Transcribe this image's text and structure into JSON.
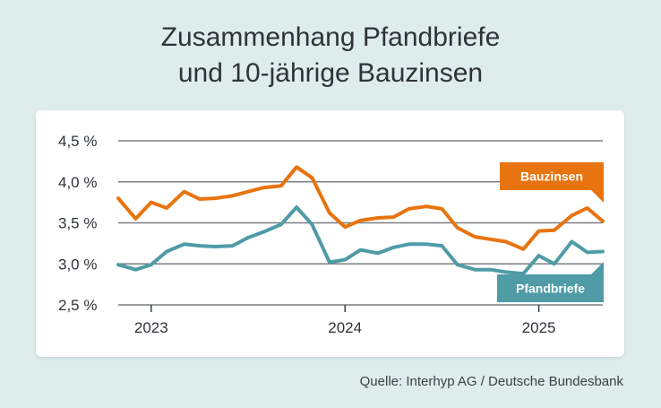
{
  "title_line1": "Zusammenhang Pfandbriefe",
  "title_line2": "und 10-jährige Bauzinsen",
  "source": "Quelle: Interhyp AG / Deutsche Bundesbank",
  "colors": {
    "bauzinsen": "#e8740f",
    "pfandbriefe": "#4f9ba6",
    "background": "#deeceb"
  },
  "chart_data": {
    "type": "line",
    "title": "Zusammenhang Pfandbriefe und 10-jährige Bauzinsen",
    "xlabel": "",
    "ylabel": "",
    "ylim": [
      2.5,
      4.5
    ],
    "yticks": [
      2.5,
      3.0,
      3.5,
      4.0,
      4.5
    ],
    "ytick_labels": [
      "2,5 %",
      "3,0 %",
      "3,5 %",
      "4,0 %",
      "4,5 %"
    ],
    "x_range": [
      2022.83,
      2025.33
    ],
    "xticks": [
      2023,
      2024,
      2025
    ],
    "xtick_labels": [
      "2023",
      "2024",
      "2025"
    ],
    "grid": "horizontal",
    "x": [
      2022.83,
      2022.92,
      2023.0,
      2023.08,
      2023.17,
      2023.25,
      2023.33,
      2023.42,
      2023.5,
      2023.58,
      2023.67,
      2023.75,
      2023.83,
      2023.92,
      2024.0,
      2024.08,
      2024.17,
      2024.25,
      2024.33,
      2024.42,
      2024.5,
      2024.58,
      2024.67,
      2024.75,
      2024.83,
      2024.92,
      2025.0,
      2025.08,
      2025.17,
      2025.25,
      2025.33
    ],
    "series": [
      {
        "name": "Bauzinsen",
        "label": "Bauzinsen",
        "values": [
          3.8,
          3.55,
          3.75,
          3.68,
          3.88,
          3.79,
          3.8,
          3.83,
          3.88,
          3.93,
          3.95,
          4.18,
          4.05,
          3.62,
          3.45,
          3.53,
          3.56,
          3.57,
          3.67,
          3.7,
          3.67,
          3.44,
          3.33,
          3.3,
          3.27,
          3.18,
          3.4,
          3.41,
          3.59,
          3.68,
          3.52
        ]
      },
      {
        "name": "Pfandbriefe",
        "label": "Pfandbriefe",
        "values": [
          2.99,
          2.93,
          2.99,
          3.15,
          3.24,
          3.22,
          3.21,
          3.22,
          3.32,
          3.39,
          3.48,
          3.69,
          3.48,
          3.02,
          3.05,
          3.17,
          3.13,
          3.2,
          3.24,
          3.24,
          3.22,
          2.99,
          2.93,
          2.93,
          2.9,
          2.88,
          3.1,
          3.0,
          3.27,
          3.14,
          3.15
        ]
      }
    ]
  }
}
